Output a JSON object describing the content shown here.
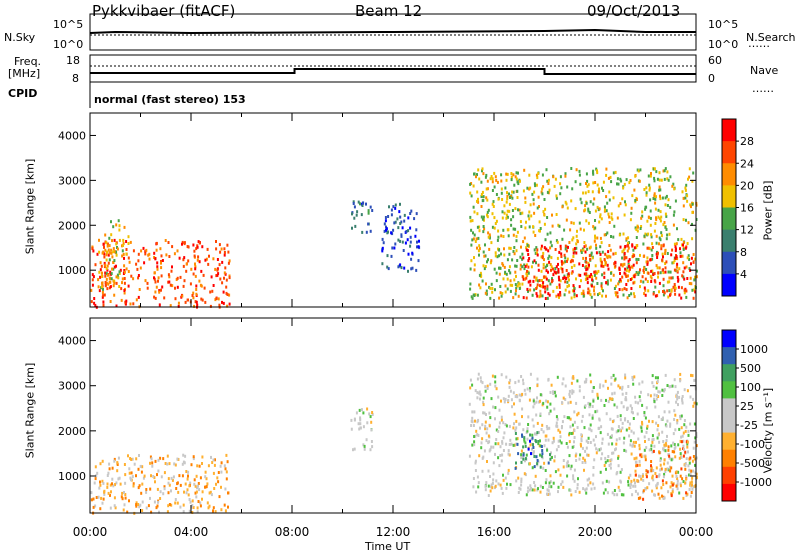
{
  "header": {
    "station": "Pykkvibaer (fitACF)",
    "beam": "Beam 12",
    "date": "09/Oct/2013"
  },
  "top_panel": {
    "nsky_label": "N.Sky",
    "nsearch_label": "N.Search",
    "freq_label_1": "Freq.",
    "freq_label_2": "[MHz]",
    "nave_label": "Nave",
    "cpid_label": "CPID",
    "mode_text": "normal (fast stereo) 153",
    "noise_ticks": [
      "10^5",
      "10^0"
    ],
    "noise_ticks_right": [
      "10^5",
      "10^0"
    ],
    "freq_ticks": [
      "18",
      "8"
    ],
    "nave_ticks": [
      "60",
      "0"
    ]
  },
  "colors": {
    "power_scale": [
      "#0000ff",
      "#2d4fb8",
      "#3a7f6e",
      "#47a447",
      "#f0c000",
      "#ff8c00",
      "#ff4500",
      "#ff0000"
    ],
    "velocity_scale": [
      "#ff0000",
      "#ff4000",
      "#ff8000",
      "#ffb030",
      "#c8c8c8",
      "#c8c8c8",
      "#50c040",
      "#40a060",
      "#3060b0",
      "#0000ff"
    ]
  },
  "chart_data": [
    {
      "type": "heatmap",
      "panel": "power",
      "ylabel": "Slant Range [km]",
      "y_ticks": [
        "4000",
        "3000",
        "2000",
        "1000"
      ],
      "ylim": [
        180,
        4500
      ],
      "xlim_hours": [
        0,
        24
      ],
      "colorbar_label": "Power [dB]",
      "colorbar_ticks": [
        "28",
        "24",
        "20",
        "16",
        "12",
        "8",
        "4"
      ],
      "colorbar_range": [
        0,
        30
      ],
      "regions": [
        {
          "t": [
            0.0,
            5.5
          ],
          "r": [
            200,
            1700
          ],
          "value": 24
        },
        {
          "t": [
            0.3,
            1.5
          ],
          "r": [
            600,
            2200
          ],
          "value": 18
        },
        {
          "t": [
            10.3,
            11.2
          ],
          "r": [
            1800,
            2600
          ],
          "value": 8
        },
        {
          "t": [
            11.5,
            13.0
          ],
          "r": [
            1000,
            2500
          ],
          "value": 6
        },
        {
          "t": [
            15.0,
            24.0
          ],
          "r": [
            400,
            3300
          ],
          "value": 16
        },
        {
          "t": [
            17.0,
            24.0
          ],
          "r": [
            400,
            1600
          ],
          "value": 26
        }
      ]
    },
    {
      "type": "heatmap",
      "panel": "velocity",
      "ylabel": "Slant Range [km]",
      "y_ticks": [
        "4000",
        "3000",
        "2000",
        "1000"
      ],
      "ylim": [
        180,
        4500
      ],
      "xlim_hours": [
        0,
        24
      ],
      "xlabel": "Time UT",
      "x_ticks": [
        "00:00",
        "04:00",
        "08:00",
        "12:00",
        "16:00",
        "20:00",
        "00:00"
      ],
      "colorbar_label": "Velocity [m s⁻¹]",
      "colorbar_ticks": [
        "1000",
        "500",
        "100",
        "25",
        "-25",
        "-100",
        "-500",
        "-1000"
      ],
      "colorbar_range": [
        -1000,
        1000
      ],
      "regions": [
        {
          "t": [
            0.0,
            5.5
          ],
          "r": [
            200,
            1500
          ],
          "value": -300
        },
        {
          "t": [
            10.3,
            11.2
          ],
          "r": [
            1600,
            2600
          ],
          "value": 0
        },
        {
          "t": [
            15.0,
            24.0
          ],
          "r": [
            600,
            3300
          ],
          "value": 0
        },
        {
          "t": [
            16.8,
            18.2
          ],
          "r": [
            1200,
            2000
          ],
          "value": 600
        },
        {
          "t": [
            21.5,
            24.0
          ],
          "r": [
            500,
            1800
          ],
          "value": -400
        }
      ]
    }
  ]
}
